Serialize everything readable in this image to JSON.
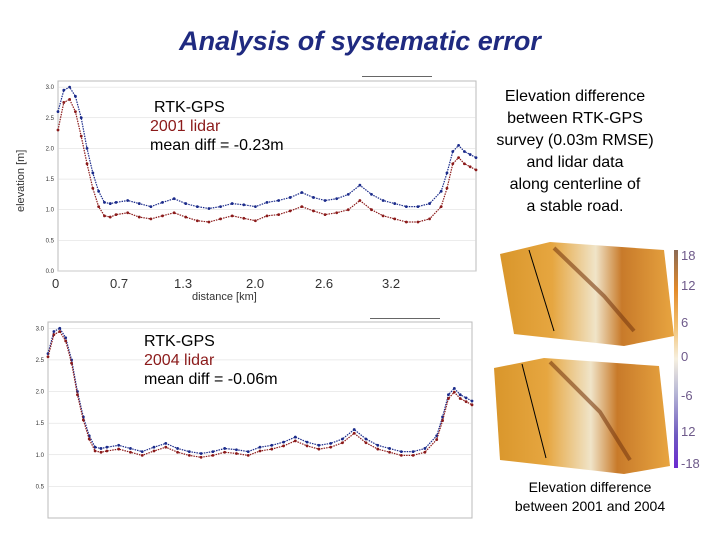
{
  "title": "Analysis of systematic error",
  "description_top": [
    "Elevation difference",
    "between RTK-GPS",
    "survey (0.03m RMSE)",
    "and lidar data",
    "along centerline of",
    "a stable road."
  ],
  "description_bottom": [
    "Elevation difference",
    "between 2001 and 2004"
  ],
  "colorbar_ticks": [
    "18",
    "12",
    "6",
    "0",
    "-6",
    "12",
    "-18"
  ],
  "chart_data": [
    {
      "type": "scatter",
      "ylabel": "elevation [m]",
      "xlabel": "distance [km]",
      "x_ticks": [
        "0",
        "0.7",
        "1.3",
        "2.0",
        "2.6",
        "3.2"
      ],
      "y_ticks": [
        "0.0",
        "0.5",
        "1.0",
        "1.5",
        "2.0",
        "2.5",
        "3.0"
      ],
      "ylim": [
        0,
        3.1
      ],
      "xlim": [
        0,
        3.6
      ],
      "annotation": [
        "RTK-GPS",
        "2001 lidar",
        "mean diff = -0.23m"
      ],
      "series": [
        {
          "color": "#1a2a8a",
          "x": [
            0.0,
            0.05,
            0.1,
            0.15,
            0.2,
            0.25,
            0.3,
            0.35,
            0.4,
            0.45,
            0.5,
            0.6,
            0.7,
            0.8,
            0.9,
            1.0,
            1.1,
            1.2,
            1.3,
            1.4,
            1.5,
            1.6,
            1.7,
            1.8,
            1.9,
            2.0,
            2.1,
            2.2,
            2.3,
            2.4,
            2.5,
            2.6,
            2.7,
            2.8,
            2.9,
            3.0,
            3.1,
            3.2,
            3.3,
            3.35,
            3.4,
            3.45,
            3.5,
            3.55,
            3.6
          ],
          "y": [
            2.6,
            2.95,
            3.0,
            2.85,
            2.5,
            2.0,
            1.6,
            1.3,
            1.12,
            1.1,
            1.12,
            1.15,
            1.1,
            1.05,
            1.12,
            1.18,
            1.1,
            1.05,
            1.02,
            1.05,
            1.1,
            1.08,
            1.05,
            1.12,
            1.15,
            1.2,
            1.28,
            1.2,
            1.15,
            1.18,
            1.25,
            1.4,
            1.25,
            1.15,
            1.1,
            1.05,
            1.05,
            1.1,
            1.3,
            1.6,
            1.95,
            2.05,
            1.95,
            1.9,
            1.85
          ]
        },
        {
          "color": "#8b1a1a",
          "x": [
            0.0,
            0.05,
            0.1,
            0.15,
            0.2,
            0.25,
            0.3,
            0.35,
            0.4,
            0.45,
            0.5,
            0.6,
            0.7,
            0.8,
            0.9,
            1.0,
            1.1,
            1.2,
            1.3,
            1.4,
            1.5,
            1.6,
            1.7,
            1.8,
            1.9,
            2.0,
            2.1,
            2.2,
            2.3,
            2.4,
            2.5,
            2.6,
            2.7,
            2.8,
            2.9,
            3.0,
            3.1,
            3.2,
            3.3,
            3.35,
            3.4,
            3.45,
            3.5,
            3.55,
            3.6
          ],
          "y": [
            2.3,
            2.75,
            2.8,
            2.6,
            2.2,
            1.75,
            1.35,
            1.05,
            0.9,
            0.88,
            0.92,
            0.95,
            0.88,
            0.85,
            0.9,
            0.95,
            0.88,
            0.82,
            0.8,
            0.85,
            0.9,
            0.86,
            0.82,
            0.9,
            0.92,
            0.98,
            1.05,
            0.98,
            0.92,
            0.95,
            1.0,
            1.15,
            1.0,
            0.9,
            0.85,
            0.8,
            0.8,
            0.85,
            1.05,
            1.35,
            1.75,
            1.85,
            1.75,
            1.7,
            1.65
          ]
        }
      ]
    },
    {
      "type": "scatter",
      "ylim": [
        0,
        3.1
      ],
      "xlim": [
        0,
        3.6
      ],
      "y_ticks": [
        "3.0",
        "2.5",
        "2.0",
        "1.5",
        "1.0",
        "0.5"
      ],
      "annotation": [
        "RTK-GPS",
        "2004 lidar",
        "mean diff = -0.06m"
      ],
      "series": [
        {
          "color": "#1a2a8a",
          "x": [
            0.0,
            0.05,
            0.1,
            0.15,
            0.2,
            0.25,
            0.3,
            0.35,
            0.4,
            0.45,
            0.5,
            0.6,
            0.7,
            0.8,
            0.9,
            1.0,
            1.1,
            1.2,
            1.3,
            1.4,
            1.5,
            1.6,
            1.7,
            1.8,
            1.9,
            2.0,
            2.1,
            2.2,
            2.3,
            2.4,
            2.5,
            2.6,
            2.7,
            2.8,
            2.9,
            3.0,
            3.1,
            3.2,
            3.3,
            3.35,
            3.4,
            3.45,
            3.5,
            3.55,
            3.6
          ],
          "y": [
            2.6,
            2.95,
            3.0,
            2.85,
            2.5,
            2.0,
            1.6,
            1.3,
            1.12,
            1.1,
            1.12,
            1.15,
            1.1,
            1.05,
            1.12,
            1.18,
            1.1,
            1.05,
            1.02,
            1.05,
            1.1,
            1.08,
            1.05,
            1.12,
            1.15,
            1.2,
            1.28,
            1.2,
            1.15,
            1.18,
            1.25,
            1.4,
            1.25,
            1.15,
            1.1,
            1.05,
            1.05,
            1.1,
            1.3,
            1.6,
            1.95,
            2.05,
            1.95,
            1.9,
            1.85
          ]
        },
        {
          "color": "#8b1a1a",
          "x": [
            0.0,
            0.05,
            0.1,
            0.15,
            0.2,
            0.25,
            0.3,
            0.35,
            0.4,
            0.45,
            0.5,
            0.6,
            0.7,
            0.8,
            0.9,
            1.0,
            1.1,
            1.2,
            1.3,
            1.4,
            1.5,
            1.6,
            1.7,
            1.8,
            1.9,
            2.0,
            2.1,
            2.2,
            2.3,
            2.4,
            2.5,
            2.6,
            2.7,
            2.8,
            2.9,
            3.0,
            3.1,
            3.2,
            3.3,
            3.35,
            3.4,
            3.45,
            3.5,
            3.55,
            3.6
          ],
          "y": [
            2.55,
            2.9,
            2.95,
            2.8,
            2.45,
            1.95,
            1.55,
            1.25,
            1.06,
            1.04,
            1.06,
            1.09,
            1.04,
            0.99,
            1.06,
            1.12,
            1.04,
            0.99,
            0.96,
            0.99,
            1.04,
            1.02,
            0.99,
            1.06,
            1.09,
            1.14,
            1.22,
            1.14,
            1.09,
            1.12,
            1.19,
            1.34,
            1.19,
            1.09,
            1.04,
            0.99,
            0.99,
            1.04,
            1.24,
            1.54,
            1.89,
            1.99,
            1.89,
            1.84,
            1.79
          ]
        }
      ]
    }
  ]
}
